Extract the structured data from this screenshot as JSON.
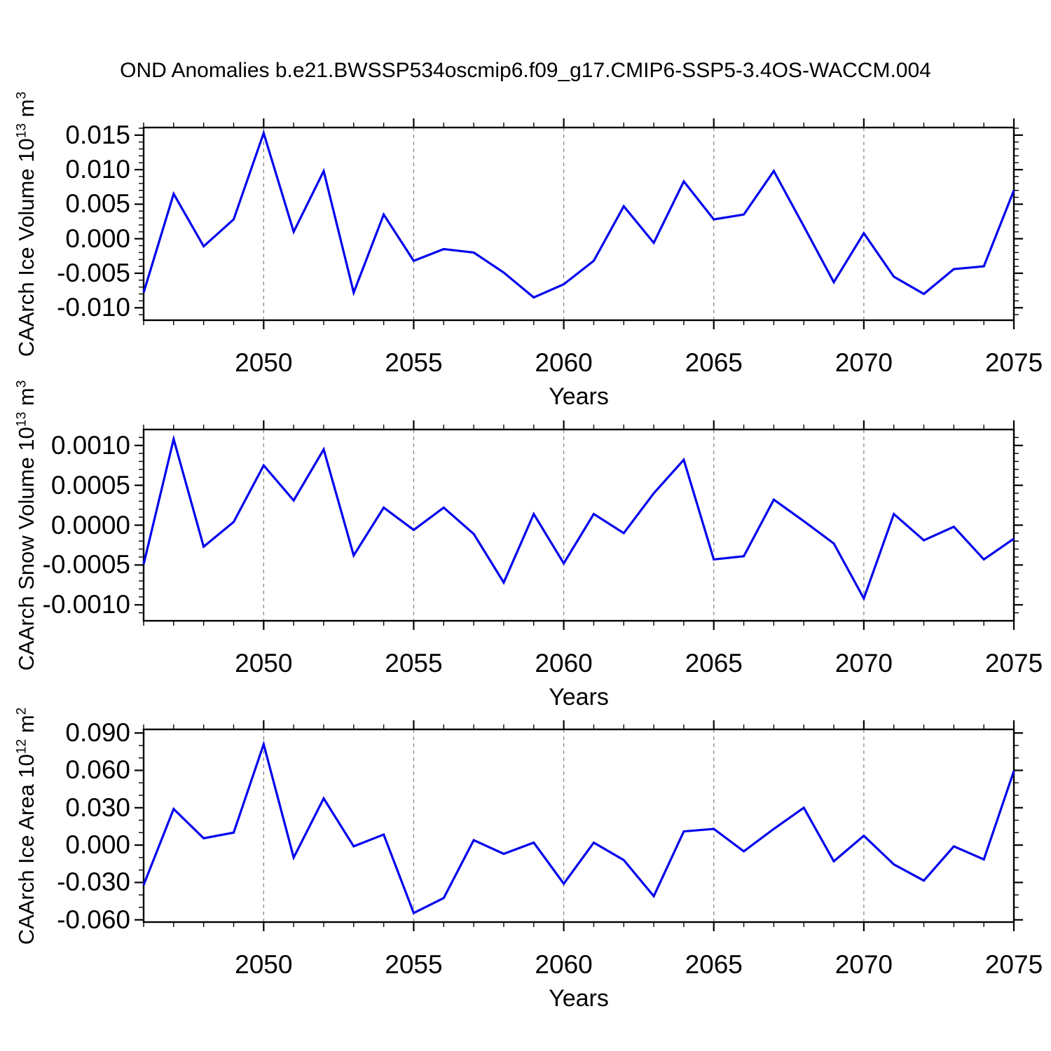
{
  "title": "OND Anomalies b.e21.BWSSP534oscmip6.f09_g17.CMIP6-SSP5-3.4OS-WACCM.004",
  "colors": {
    "line": "#0000ee",
    "grid": "#888888",
    "axis": "#000000",
    "background": "#ffffff"
  },
  "x_axis": {
    "label": "Years",
    "xlim": [
      2046,
      2075
    ],
    "x": [
      2046,
      2047,
      2048,
      2049,
      2050,
      2051,
      2052,
      2053,
      2054,
      2055,
      2056,
      2057,
      2058,
      2059,
      2060,
      2061,
      2062,
      2063,
      2064,
      2065,
      2066,
      2067,
      2068,
      2069,
      2070,
      2071,
      2072,
      2073,
      2074,
      2075
    ],
    "major_ticks": [
      2050,
      2055,
      2060,
      2065,
      2070,
      2075
    ],
    "major_tick_labels": [
      "2050",
      "2055",
      "2060",
      "2065",
      "2070",
      "2075"
    ],
    "minor_step": 1,
    "gridline_years": [
      2050,
      2055,
      2060,
      2065,
      2070
    ]
  },
  "chart_data": [
    {
      "type": "line",
      "series_name": "CAArch Ice Volume anomaly",
      "ylabel": {
        "prefix": "CAArch Ice Volume 10",
        "exp": "13",
        "unit": " m",
        "unit_exp": "3"
      },
      "ylim": [
        -0.0118,
        0.0161
      ],
      "y_major_ticks": [
        0.015,
        0.01,
        0.005,
        0.0,
        -0.005,
        -0.01
      ],
      "y_major_tick_labels": [
        "0.015",
        "0.010",
        "0.005",
        "0.000",
        "-0.005",
        "-0.010"
      ],
      "y_minor_step": 0.001,
      "grid": "dashed-vertical",
      "legend": "none",
      "values": [
        -0.0078,
        0.0065,
        -0.0011,
        0.0028,
        0.0153,
        0.001,
        0.0098,
        -0.0078,
        0.0035,
        -0.0032,
        -0.0015,
        -0.002,
        -0.0049,
        -0.0085,
        -0.0066,
        -0.0032,
        0.0047,
        -0.0006,
        0.0083,
        0.0028,
        0.0035,
        0.0098,
        0.0018,
        -0.0063,
        0.0008,
        -0.0055,
        -0.008,
        -0.0044,
        -0.004,
        0.007
      ]
    },
    {
      "type": "line",
      "series_name": "CAArch Snow Volume anomaly",
      "ylabel": {
        "prefix": "CAArch Snow Volume 10",
        "exp": "13",
        "unit": " m",
        "unit_exp": "3"
      },
      "ylim": [
        -0.0012,
        0.0012
      ],
      "y_major_ticks": [
        0.001,
        0.0005,
        0.0,
        -0.0005,
        -0.001
      ],
      "y_major_tick_labels": [
        "0.0010",
        "0.0005",
        "0.0000",
        "-0.0005",
        "-0.0010"
      ],
      "y_minor_step": 0.0001,
      "grid": "dashed-vertical",
      "legend": "none",
      "values": [
        -0.00049,
        0.00108,
        -0.00027,
        4e-05,
        0.00075,
        0.00031,
        0.00095,
        -0.00038,
        0.00022,
        -6e-05,
        0.00022,
        -0.00011,
        -0.00072,
        0.00014,
        -0.00048,
        0.00014,
        -0.0001,
        0.0004,
        0.00082,
        -0.00043,
        -0.00039,
        0.00032,
        5e-05,
        -0.00023,
        -0.00092,
        0.00014,
        -0.00019,
        -2e-05,
        -0.00043,
        -0.00017
      ]
    },
    {
      "type": "line",
      "series_name": "CAArch Ice Area anomaly",
      "ylabel": {
        "prefix": "CAArch Ice Area 10",
        "exp": "12",
        "unit": " m",
        "unit_exp": "2"
      },
      "ylim": [
        -0.0618,
        0.0929
      ],
      "y_major_ticks": [
        0.09,
        0.06,
        0.03,
        0.0,
        -0.03,
        -0.06
      ],
      "y_major_tick_labels": [
        "0.090",
        "0.060",
        "0.030",
        "0.000",
        "-0.030",
        "-0.060"
      ],
      "y_minor_step": 0.01,
      "grid": "dashed-vertical",
      "legend": "none",
      "values": [
        -0.032,
        0.029,
        0.0055,
        0.01,
        0.081,
        -0.01,
        0.0375,
        -0.001,
        0.0085,
        -0.0545,
        -0.0425,
        0.004,
        -0.007,
        0.002,
        -0.031,
        0.002,
        -0.012,
        -0.041,
        0.011,
        0.013,
        -0.005,
        0.013,
        0.03,
        -0.013,
        0.0075,
        -0.0155,
        -0.0285,
        -0.001,
        -0.0115,
        0.0595
      ]
    }
  ]
}
